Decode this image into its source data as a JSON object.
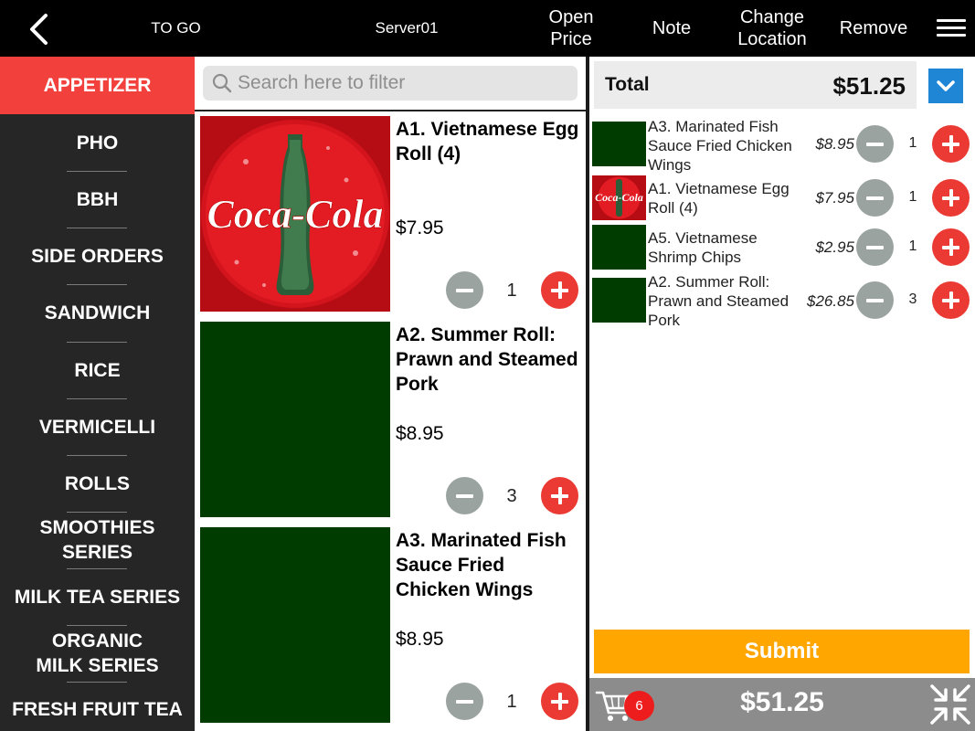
{
  "topbar": {
    "order_type": "TO GO",
    "server": "Server01",
    "open_price": "Open\nPrice",
    "note": "Note",
    "change_location": "Change\nLocation",
    "remove": "Remove"
  },
  "sidebar": {
    "categories": [
      {
        "label": "APPETIZER",
        "active": true
      },
      {
        "label": "PHO"
      },
      {
        "label": "BBH"
      },
      {
        "label": "SIDE ORDERS"
      },
      {
        "label": "SANDWICH"
      },
      {
        "label": "RICE"
      },
      {
        "label": "VERMICELLI"
      },
      {
        "label": "ROLLS"
      },
      {
        "label": "SMOOTHIES SERIES"
      },
      {
        "label": "MILK TEA SERIES"
      },
      {
        "label": "ORGANIC MILK SERIES"
      },
      {
        "label": "FRESH FRUIT TEA"
      }
    ]
  },
  "search": {
    "placeholder": "Search here to filter"
  },
  "products": [
    {
      "name": "A1. Vietnamese Egg Roll (4)",
      "price": "$7.95",
      "qty": "1",
      "image": "coca-cola",
      "logo_text": "Coca-Cola"
    },
    {
      "name": "A2. Summer Roll: Prawn and Steamed Pork",
      "price": "$8.95",
      "qty": "3",
      "image": "placeholder-green"
    },
    {
      "name": "A3. Marinated Fish Sauce Fried Chicken Wings",
      "price": "$8.95",
      "qty": "1",
      "image": "placeholder-green"
    }
  ],
  "order": {
    "total_label": "Total",
    "total_value": "$51.25",
    "lines": [
      {
        "name": "A3. Marinated Fish Sauce Fried Chicken Wings",
        "price": "$8.95",
        "qty": "1",
        "image": "placeholder-green"
      },
      {
        "name": "A1. Vietnamese Egg Roll (4)",
        "price": "$7.95",
        "qty": "1",
        "image": "coca-cola"
      },
      {
        "name": "A5. Vietnamese Shrimp Chips",
        "price": "$2.95",
        "qty": "1",
        "image": "placeholder-green"
      },
      {
        "name": "A2. Summer Roll: Prawn and Steamed Pork",
        "price": "$26.85",
        "qty": "3",
        "image": "placeholder-green"
      }
    ],
    "submit_label": "Submit",
    "cart_count": "6",
    "footer_total": "$51.25"
  },
  "colors": {
    "accent_red": "#f2403d",
    "plus_red": "#ea3a33",
    "minus_gray": "#9aa3a0",
    "submit_orange": "#ffa600",
    "dropdown_blue": "#1f86d6",
    "placeholder_green": "#003b00",
    "sidebar_bg": "#262626",
    "footer_gray": "#8c8c8c"
  },
  "icons": [
    "back-chevron-icon",
    "hamburger-menu-icon",
    "search-icon",
    "chevron-down-icon",
    "minus-icon",
    "plus-icon",
    "cart-icon",
    "compress-icon"
  ]
}
